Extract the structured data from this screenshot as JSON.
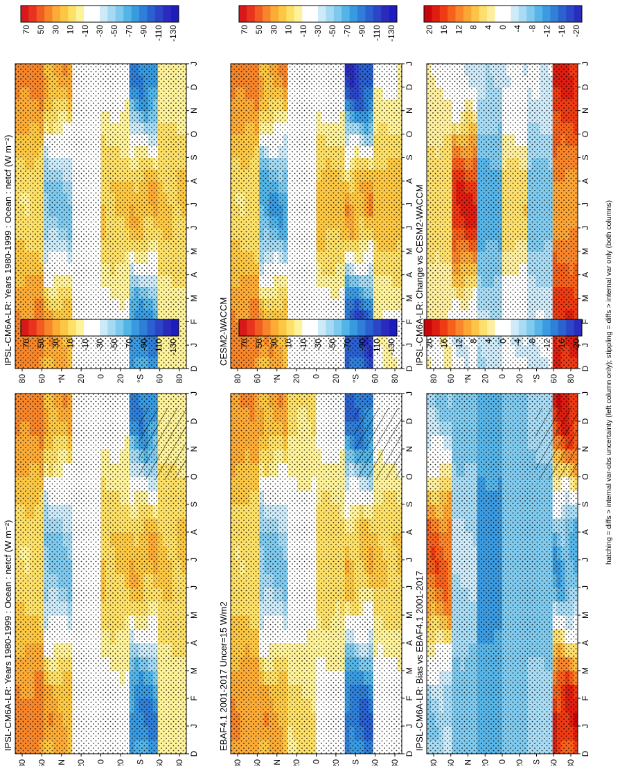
{
  "footnote": "hatching = diffs > internal var-obs uncertainty (left column only); stippling = diffs > internal var only (both columns)",
  "colorbars": {
    "absolute": [
      "70",
      "50",
      "30",
      "10",
      "-10",
      "-30",
      "-50",
      "-70",
      "-90",
      "-110",
      "-130"
    ],
    "difference": [
      "20",
      "16",
      "12",
      "8",
      "4",
      "0",
      "-4",
      "-8",
      "-12",
      "-16",
      "-20"
    ],
    "absolute_colors": [
      "#d7191c",
      "#e8341d",
      "#f25c22",
      "#f7862b",
      "#fbab36",
      "#fcc844",
      "#fde068",
      "#fef29a",
      "#ffffff",
      "#ffffff",
      "#cdeaf8",
      "#a6daf3",
      "#7ec9ee",
      "#53b4e6",
      "#3a9ae0",
      "#2f7fd8",
      "#2a60cf",
      "#2b45c6",
      "#2a2bbd",
      "#1d1dbf"
    ],
    "difference_colors": [
      "#c8070d",
      "#dd1e10",
      "#ee3b14",
      "#f6611c",
      "#f9862a",
      "#fba637",
      "#fcc448",
      "#fddf6d",
      "#feefa0",
      "#ffffff",
      "#ffffff",
      "#cfeaf8",
      "#a8dbf4",
      "#80caee",
      "#57b5e7",
      "#3c9be0",
      "#3080d8",
      "#2b62cf",
      "#2b46c6",
      "#2a2cbd"
    ]
  },
  "axes": {
    "month_ticks": [
      "D",
      "J",
      "F",
      "M",
      "A",
      "M",
      "J",
      "J",
      "A",
      "S",
      "O",
      "N",
      "D",
      "J"
    ],
    "lat_ticks": [
      "80",
      "60",
      "°N",
      "20",
      "0",
      "20",
      "°S",
      "60",
      "80"
    ]
  },
  "chart_data": [
    {
      "type": "heatmap",
      "title": "IPSL-CM6A-LR: Years 1980-1999 : Ocean : netcf (W m⁻²)",
      "xlabel": "",
      "ylabel": "",
      "colorbar": "absolute",
      "x_ticks": [
        "D",
        "J",
        "F",
        "M",
        "A",
        "M",
        "J",
        "J",
        "A",
        "S",
        "O",
        "N",
        "D",
        "J"
      ],
      "y_ticks": [
        "80",
        "60",
        "°N",
        "20",
        "0",
        "20",
        "°S",
        "60",
        "80"
      ],
      "y_range": [
        -90,
        90
      ],
      "hatching": "diffs > internal var-obs uncertainty",
      "stippling": "diffs > internal var only",
      "zones": [
        {
          "lat_range": [
            90,
            60
          ],
          "jan": 40,
          "jul": 5
        },
        {
          "lat_range": [
            60,
            30
          ],
          "jan": 30,
          "jul": -55
        },
        {
          "lat_range": [
            30,
            0
          ],
          "jan": -10,
          "jul": -25
        },
        {
          "lat_range": [
            0,
            -30
          ],
          "jan": -15,
          "jul": 15
        },
        {
          "lat_range": [
            -30,
            -60
          ],
          "jan": -85,
          "jul": 25
        },
        {
          "lat_range": [
            -60,
            -90
          ],
          "jan": -5,
          "jul": 15
        }
      ]
    },
    {
      "type": "heatmap",
      "title": "IPSL-CM6A-LR: Years 1980-1999 : Ocean : netcf (W m⁻²)",
      "xlabel": "",
      "ylabel": "",
      "colorbar": "absolute",
      "x_ticks": [
        "D",
        "J",
        "F",
        "M",
        "A",
        "M",
        "J",
        "J",
        "A",
        "S",
        "O",
        "N",
        "D",
        "J"
      ],
      "y_ticks": [
        "80",
        "60",
        "°N",
        "20",
        "0",
        "20",
        "°S",
        "60",
        "80"
      ],
      "y_range": [
        -90,
        90
      ],
      "zones": [
        {
          "lat_range": [
            90,
            60
          ],
          "jan": 40,
          "jul": 5
        },
        {
          "lat_range": [
            60,
            30
          ],
          "jan": 30,
          "jul": -55
        },
        {
          "lat_range": [
            30,
            0
          ],
          "jan": -10,
          "jul": -25
        },
        {
          "lat_range": [
            0,
            -30
          ],
          "jan": -15,
          "jul": 15
        },
        {
          "lat_range": [
            -30,
            -60
          ],
          "jan": -85,
          "jul": 25
        },
        {
          "lat_range": [
            -60,
            -90
          ],
          "jan": -5,
          "jul": 15
        }
      ]
    },
    {
      "type": "heatmap",
      "title": "EBAF4.1 2001-2017 Uncer=15 W/m2",
      "xlabel": "",
      "ylabel": "",
      "colorbar": "absolute",
      "x_ticks": [
        "D",
        "J",
        "F",
        "M",
        "A",
        "M",
        "J",
        "J",
        "A",
        "S",
        "O",
        "N",
        "D",
        "J"
      ],
      "y_ticks": [
        "80",
        "60",
        "°N",
        "20",
        "0",
        "20",
        "°S",
        "60",
        "80"
      ],
      "y_range": [
        -90,
        90
      ],
      "zones": [
        {
          "lat_range": [
            90,
            60
          ],
          "jan": 35,
          "jul": 5
        },
        {
          "lat_range": [
            60,
            30
          ],
          "jan": 30,
          "jul": -55
        },
        {
          "lat_range": [
            30,
            0
          ],
          "jan": 5,
          "jul": -20
        },
        {
          "lat_range": [
            0,
            -30
          ],
          "jan": -15,
          "jul": 10
        },
        {
          "lat_range": [
            -30,
            -60
          ],
          "jan": -95,
          "jul": 20
        },
        {
          "lat_range": [
            -60,
            -90
          ],
          "jan": -20,
          "jul": 15
        }
      ]
    },
    {
      "type": "heatmap",
      "title": "CESM2-WACCM",
      "xlabel": "",
      "ylabel": "",
      "colorbar": "absolute",
      "x_ticks": [
        "D",
        "J",
        "F",
        "M",
        "A",
        "M",
        "J",
        "J",
        "A",
        "S",
        "O",
        "N",
        "D",
        "J"
      ],
      "y_ticks": [
        "80",
        "60",
        "°N",
        "20",
        "0",
        "20",
        "°S",
        "60",
        "80"
      ],
      "y_range": [
        -90,
        90
      ],
      "zones": [
        {
          "lat_range": [
            90,
            60
          ],
          "jan": 40,
          "jul": 5
        },
        {
          "lat_range": [
            60,
            30
          ],
          "jan": 30,
          "jul": -70
        },
        {
          "lat_range": [
            30,
            0
          ],
          "jan": -10,
          "jul": -20
        },
        {
          "lat_range": [
            0,
            -30
          ],
          "jan": -20,
          "jul": 20
        },
        {
          "lat_range": [
            -30,
            -60
          ],
          "jan": -110,
          "jul": 30
        },
        {
          "lat_range": [
            -60,
            -90
          ],
          "jan": -10,
          "jul": 20
        }
      ]
    },
    {
      "type": "heatmap",
      "title": "IPSL-CM6A-LR: Bias vs EBAF4.1 2001-2017",
      "xlabel": "",
      "ylabel": "",
      "colorbar": "difference",
      "x_ticks": [
        "D",
        "J",
        "F",
        "M",
        "A",
        "M",
        "J",
        "J",
        "A",
        "S",
        "O",
        "N",
        "D",
        "J"
      ],
      "y_ticks": [
        "80",
        "60",
        "°N",
        "20",
        "0",
        "20",
        "°S",
        "60",
        "80"
      ],
      "y_range": [
        -90,
        90
      ],
      "zones": [
        {
          "lat_range": [
            90,
            60
          ],
          "jan": -6,
          "jul": 14
        },
        {
          "lat_range": [
            60,
            30
          ],
          "jan": -8,
          "jul": -4
        },
        {
          "lat_range": [
            30,
            0
          ],
          "jan": -10,
          "jul": -12
        },
        {
          "lat_range": [
            0,
            -30
          ],
          "jan": -8,
          "jul": -8
        },
        {
          "lat_range": [
            -30,
            -60
          ],
          "jan": -6,
          "jul": -8
        },
        {
          "lat_range": [
            -60,
            -90
          ],
          "jan": 18,
          "jul": -10
        }
      ]
    },
    {
      "type": "heatmap",
      "title": "IPSL-CM6A-LR: Change vs CESM2-WACCM",
      "xlabel": "",
      "ylabel": "",
      "colorbar": "difference",
      "x_ticks": [
        "D",
        "J",
        "F",
        "M",
        "A",
        "M",
        "J",
        "J",
        "A",
        "S",
        "O",
        "N",
        "D",
        "J"
      ],
      "y_ticks": [
        "80",
        "60",
        "°N",
        "20",
        "0",
        "20",
        "°S",
        "60",
        "80"
      ],
      "y_range": [
        -90,
        90
      ],
      "zones": [
        {
          "lat_range": [
            90,
            60
          ],
          "jan": 2,
          "jul": 6
        },
        {
          "lat_range": [
            60,
            30
          ],
          "jan": -2,
          "jul": 18
        },
        {
          "lat_range": [
            30,
            0
          ],
          "jan": -4,
          "jul": -10
        },
        {
          "lat_range": [
            0,
            -30
          ],
          "jan": -2,
          "jul": 6
        },
        {
          "lat_range": [
            -30,
            -60
          ],
          "jan": -2,
          "jul": -8
        },
        {
          "lat_range": [
            -60,
            -90
          ],
          "jan": 18,
          "jul": 10
        }
      ]
    }
  ]
}
